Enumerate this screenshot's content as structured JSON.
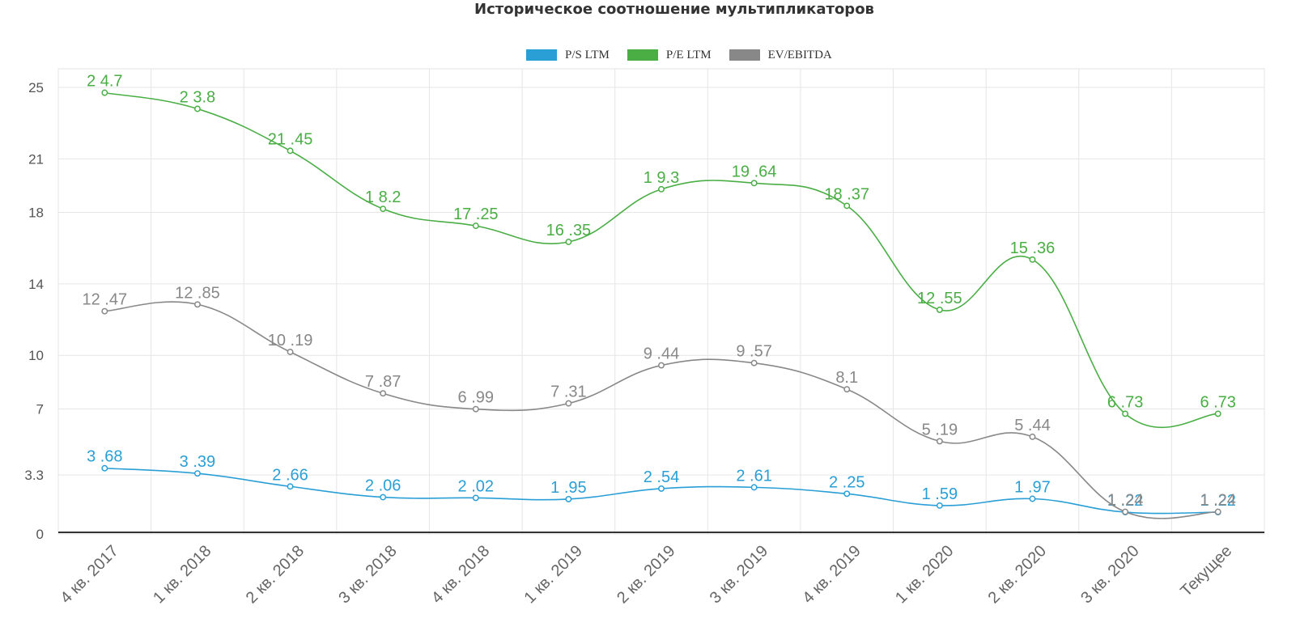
{
  "chart_data": {
    "type": "line",
    "title": "Историческое соотношение мультипликаторов",
    "categories": [
      "4 кв. 2017",
      "1 кв. 2018",
      "2 кв. 2018",
      "3 кв. 2018",
      "4 кв. 2018",
      "1 кв. 2019",
      "2 кв. 2019",
      "3 кв. 2019",
      "4 кв. 2019",
      "1 кв. 2020",
      "2 кв. 2020",
      "3 кв. 2020",
      "Текущее"
    ],
    "y_ticks": [
      "0",
      "3.3",
      "7",
      "10",
      "14",
      "18",
      "21",
      "25"
    ],
    "ylim": [
      0,
      25
    ],
    "grid": true,
    "legend_position": "top-center",
    "series": [
      {
        "name": "P/S LTM",
        "color": "#2a9fd6",
        "values": [
          3.68,
          3.39,
          2.66,
          2.06,
          2.02,
          1.95,
          2.54,
          2.61,
          2.25,
          1.59,
          1.97,
          1.22,
          1.22
        ],
        "labels": [
          "3 .68",
          "3 .39",
          "2 .66",
          "2 .06",
          "2 .02",
          "1 .95",
          "2 .54",
          "2 .61",
          "2 .25",
          "1 .59",
          "1 .97",
          "1 .22",
          "1 .22"
        ]
      },
      {
        "name": "P/E LTM",
        "color": "#4aae45",
        "values": [
          24.7,
          23.8,
          21.45,
          18.2,
          17.25,
          16.35,
          19.3,
          19.64,
          18.37,
          12.55,
          15.36,
          6.73,
          6.73
        ],
        "labels": [
          "2 4.7",
          "2 3.8",
          "21 .45",
          "1 8.2",
          "17 .25",
          "16 .35",
          "1 9.3",
          "19 .64",
          "18 .37",
          "12 .55",
          "15 .36",
          "6 .73",
          "6 .73"
        ]
      },
      {
        "name": "EV/EBITDA",
        "color": "#888888",
        "values": [
          12.47,
          12.85,
          10.19,
          7.87,
          6.99,
          7.31,
          9.44,
          9.57,
          8.1,
          5.19,
          5.44,
          1.24,
          1.24
        ],
        "labels": [
          "12 .47",
          "12 .85",
          "10 .19",
          "7 .87",
          "6 .99",
          "7 .31",
          "9 .44",
          "9 .57",
          "8.1",
          "5 .19",
          "5 .44",
          "1 .24",
          "1 .24"
        ]
      }
    ]
  }
}
